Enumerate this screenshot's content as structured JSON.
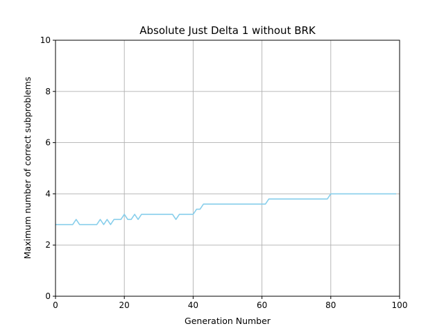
{
  "chart_data": {
    "type": "line",
    "title": "Absolute Just Delta 1 without BRK",
    "xlabel": "Generation Number",
    "ylabel": "Maximum number of correct subproblems",
    "xlim": [
      0,
      100
    ],
    "ylim": [
      0,
      10
    ],
    "xticks": [
      0,
      20,
      40,
      60,
      80,
      100
    ],
    "yticks": [
      0,
      2,
      4,
      6,
      8,
      10
    ],
    "xtick_labels": [
      "0",
      "20",
      "40",
      "60",
      "80",
      "100"
    ],
    "ytick_labels": [
      "0",
      "2",
      "4",
      "6",
      "8",
      "10"
    ],
    "grid": true,
    "series": [
      {
        "color": "#87ceeb",
        "x": [
          0,
          1,
          2,
          3,
          4,
          5,
          6,
          7,
          8,
          9,
          10,
          11,
          12,
          13,
          14,
          15,
          16,
          17,
          18,
          19,
          20,
          21,
          22,
          23,
          24,
          25,
          26,
          27,
          28,
          29,
          30,
          31,
          32,
          33,
          34,
          35,
          36,
          37,
          38,
          39,
          40,
          41,
          42,
          43,
          44,
          45,
          46,
          47,
          48,
          49,
          50,
          51,
          52,
          53,
          54,
          55,
          56,
          57,
          58,
          59,
          60,
          61,
          62,
          63,
          64,
          65,
          66,
          67,
          68,
          69,
          70,
          71,
          72,
          73,
          74,
          75,
          76,
          77,
          78,
          79,
          80,
          81,
          82,
          83,
          84,
          85,
          86,
          87,
          88,
          89,
          90,
          91,
          92,
          93,
          94,
          95,
          96,
          97,
          98,
          99
        ],
        "y": [
          2.8,
          2.8,
          2.8,
          2.8,
          2.8,
          2.8,
          3.0,
          2.8,
          2.8,
          2.8,
          2.8,
          2.8,
          2.8,
          3.0,
          2.8,
          3.0,
          2.8,
          3.0,
          3.0,
          3.0,
          3.2,
          3.0,
          3.0,
          3.2,
          3.0,
          3.2,
          3.2,
          3.2,
          3.2,
          3.2,
          3.2,
          3.2,
          3.2,
          3.2,
          3.2,
          3.0,
          3.2,
          3.2,
          3.2,
          3.2,
          3.2,
          3.4,
          3.4,
          3.6,
          3.6,
          3.6,
          3.6,
          3.6,
          3.6,
          3.6,
          3.6,
          3.6,
          3.6,
          3.6,
          3.6,
          3.6,
          3.6,
          3.6,
          3.6,
          3.6,
          3.6,
          3.6,
          3.8,
          3.8,
          3.8,
          3.8,
          3.8,
          3.8,
          3.8,
          3.8,
          3.8,
          3.8,
          3.8,
          3.8,
          3.8,
          3.8,
          3.8,
          3.8,
          3.8,
          3.8,
          4.0,
          4.0,
          4.0,
          4.0,
          4.0,
          4.0,
          4.0,
          4.0,
          4.0,
          4.0,
          4.0,
          4.0,
          4.0,
          4.0,
          4.0,
          4.0,
          4.0,
          4.0,
          4.0,
          4.0
        ]
      }
    ]
  }
}
